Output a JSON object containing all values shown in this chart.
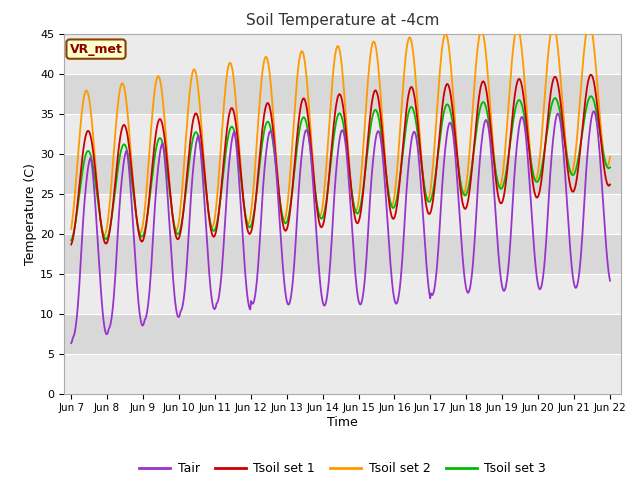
{
  "title": "Soil Temperature at -4cm",
  "xlabel": "Time",
  "ylabel": "Temperature (C)",
  "ylim": [
    0,
    45
  ],
  "colors": {
    "Tair": "#9933cc",
    "Tsoil1": "#cc0000",
    "Tsoil2": "#ff9900",
    "Tsoil3": "#00bb00"
  },
  "legend_labels": [
    "Tair",
    "Tsoil set 1",
    "Tsoil set 2",
    "Tsoil set 3"
  ],
  "vr_met_label": "VR_met",
  "xtick_labels": [
    "Jun 7",
    "Jun 8",
    "Jun 9",
    "Jun 10",
    "Jun 11",
    "Jun 12",
    "Jun 13",
    "Jun 14",
    "Jun 15",
    "Jun 16",
    "Jun 17",
    "Jun 18",
    "Jun 19",
    "Jun 20",
    "Jun 21",
    "Jun 22"
  ],
  "ytick_values": [
    0,
    5,
    10,
    15,
    20,
    25,
    30,
    35,
    40,
    45
  ],
  "band_light": "#ebebeb",
  "band_dark": "#d8d8d8",
  "fig_bg": "#ffffff",
  "n_days": 15
}
